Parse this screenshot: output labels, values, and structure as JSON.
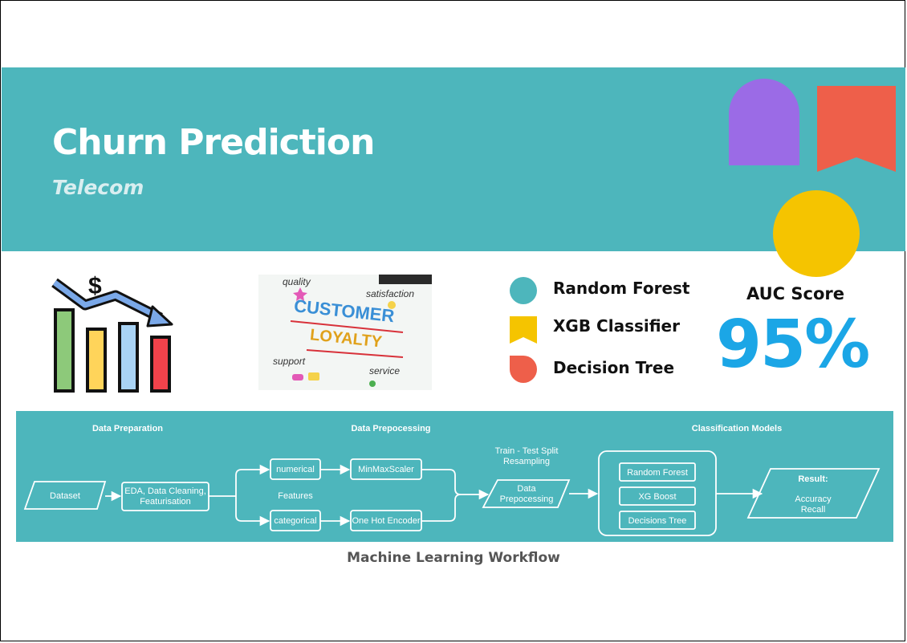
{
  "header": {
    "title": "Churn Prediction",
    "subtitle": "Telecom"
  },
  "loyalty_image": {
    "words": [
      "quality",
      "satisfaction",
      "CUSTOMER",
      "LOYALTY",
      "support",
      "service"
    ]
  },
  "models_legend": [
    {
      "label": "Random Forest",
      "shape": "circle",
      "color": "#4db6bc"
    },
    {
      "label": "XGB Classifier",
      "shape": "bookmark",
      "color": "#f5c400"
    },
    {
      "label": "Decision Tree",
      "shape": "half-round",
      "color": "#ee5f4a"
    }
  ],
  "metric": {
    "label": "AUC Score",
    "value": "95%"
  },
  "workflow": {
    "caption": "Machine Learning Workflow",
    "sections": {
      "preparation": "Data Preparation",
      "preprocessing": "Data Prepocessing",
      "models": "Classification Models"
    },
    "nodes": {
      "dataset": "Dataset",
      "eda_line1": "EDA, Data Cleaning,",
      "eda_line2": "Featurisation",
      "numerical": "numerical",
      "categorical": "categorical",
      "features": "Features",
      "minmax": "MinMaxScaler",
      "onehot": "One Hot Encoder",
      "split_line1": "Train - Test Split",
      "split_line2": "Resampling",
      "dp_line1": "Data",
      "dp_line2": "Prepocessing",
      "rf": "Random Forest",
      "xgb": "XG Boost",
      "dt": "Decisions Tree",
      "result_title": "Result:",
      "result_line1": "Accuracy",
      "result_line2": "Recall"
    }
  },
  "colors": {
    "banner": "#4db6bc",
    "purple": "#9b6be6",
    "coral": "#ee5f4a",
    "yellow": "#f5c400",
    "auc": "#1ba6e6"
  }
}
